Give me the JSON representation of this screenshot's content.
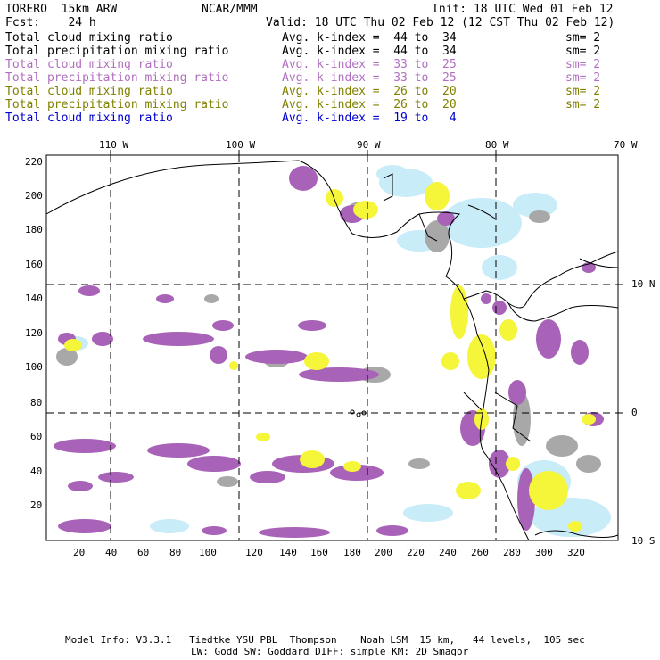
{
  "header": {
    "model": "TORERO  15km ARW",
    "center": "NCAR/MMM",
    "init": "Init: 18 UTC Wed 01 Feb 12",
    "fcst": "Fcst:    24 h",
    "valid": "Valid: 18 UTC Thu 02 Feb 12 (12 CST Thu 02 Feb 12)"
  },
  "legend": [
    {
      "field": "Total cloud mixing ratio",
      "kindex": "Avg. k-index =  44 to  34",
      "sm": "sm= 2",
      "color": "#000000"
    },
    {
      "field": "Total precipitation mixing ratio",
      "kindex": "Avg. k-index =  44 to  34",
      "sm": "sm= 2",
      "color": "#000000"
    },
    {
      "field": "Total cloud mixing ratio",
      "kindex": "Avg. k-index =  33 to  25",
      "sm": "sm= 2",
      "color": "#b070c0"
    },
    {
      "field": "Total precipitation mixing ratio",
      "kindex": "Avg. k-index =  33 to  25",
      "sm": "sm= 2",
      "color": "#b070c0"
    },
    {
      "field": "Total cloud mixing ratio",
      "kindex": "Avg. k-index =  26 to  20",
      "sm": "sm= 2",
      "color": "#808000"
    },
    {
      "field": "Total precipitation mixing ratio",
      "kindex": "Avg. k-index =  26 to  20",
      "sm": "sm= 2",
      "color": "#808000"
    },
    {
      "field": "Total cloud mixing ratio",
      "kindex": "Avg. k-index =  19 to   4",
      "sm": "",
      "color": "#0000d0"
    }
  ],
  "map": {
    "lon_labels": [
      "110 W",
      "100 W",
      "90 W",
      "80 W",
      "70 W"
    ],
    "lat_labels": [
      "10 N",
      "0",
      "10 S"
    ],
    "y_ticks": [
      "220",
      "200",
      "180",
      "160",
      "140",
      "120",
      "100",
      "80",
      "60",
      "40",
      "20"
    ],
    "x_ticks": [
      "20",
      "40",
      "60",
      "80",
      "100",
      "120",
      "140",
      "160",
      "180",
      "200",
      "220",
      "240",
      "260",
      "280",
      "300",
      "320"
    ]
  },
  "colors": {
    "purple": "#a862b8",
    "gray": "#a8a8a8",
    "yellow": "#f5f53a",
    "lightblue": "#c8ecf8",
    "coast": "#000000"
  },
  "footer": {
    "line1": "Model Info: V3.3.1   Tiedtke YSU PBL  Thompson    Noah LSM  15 km,   44 levels,  105 sec",
    "line2": "LW: Godd SW: Goddard DIFF: simple KM: 2D Smagor"
  }
}
